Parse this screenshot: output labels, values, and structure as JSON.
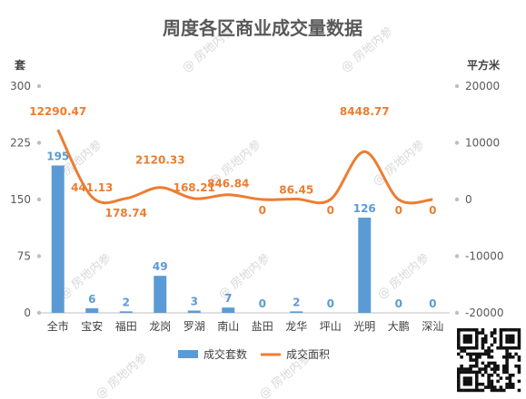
{
  "chart_data": {
    "type": "bar",
    "title": "周度各区商业成交量数据",
    "categories": [
      "全市",
      "宝安",
      "福田",
      "龙岗",
      "罗湖",
      "南山",
      "盐田",
      "龙华",
      "坪山",
      "光明",
      "大鹏",
      "深汕"
    ],
    "y_left_unit": "套",
    "y_right_unit": "平方米",
    "y_left_ticks": [
      "0",
      "75",
      "150",
      "225",
      "300"
    ],
    "y_right_ticks": [
      "-20000",
      "-10000",
      "0",
      "10000",
      "20000"
    ],
    "ylim_left": [
      0,
      300
    ],
    "ylim_right": [
      -20000,
      20000
    ],
    "grid": false,
    "legend_position": "bottom",
    "series": [
      {
        "name": "成交套数",
        "type": "bar",
        "axis": "left",
        "color": "#5b9bd5",
        "values": [
          195,
          6,
          2,
          49,
          3,
          7,
          0,
          2,
          0,
          126,
          0,
          0
        ],
        "labels": [
          "195",
          "6",
          "2",
          "49",
          "3",
          "7",
          "0",
          "2",
          "0",
          "126",
          "0",
          "0"
        ]
      },
      {
        "name": "成交面积",
        "type": "line",
        "axis": "right",
        "color": "#ed7d31",
        "values": [
          12290.47,
          441.13,
          178.74,
          2120.33,
          168.21,
          846.84,
          0,
          86.45,
          0,
          8448.77,
          0,
          0
        ],
        "labels": [
          "12290.47",
          "441.13",
          "178.74",
          "2120.33",
          "168.21",
          "846.84",
          "0",
          "86.45",
          "0",
          "8448.77",
          "0",
          "0"
        ]
      }
    ]
  },
  "watermark": "@ 房地内参",
  "qr_icon": "qr-code-icon"
}
